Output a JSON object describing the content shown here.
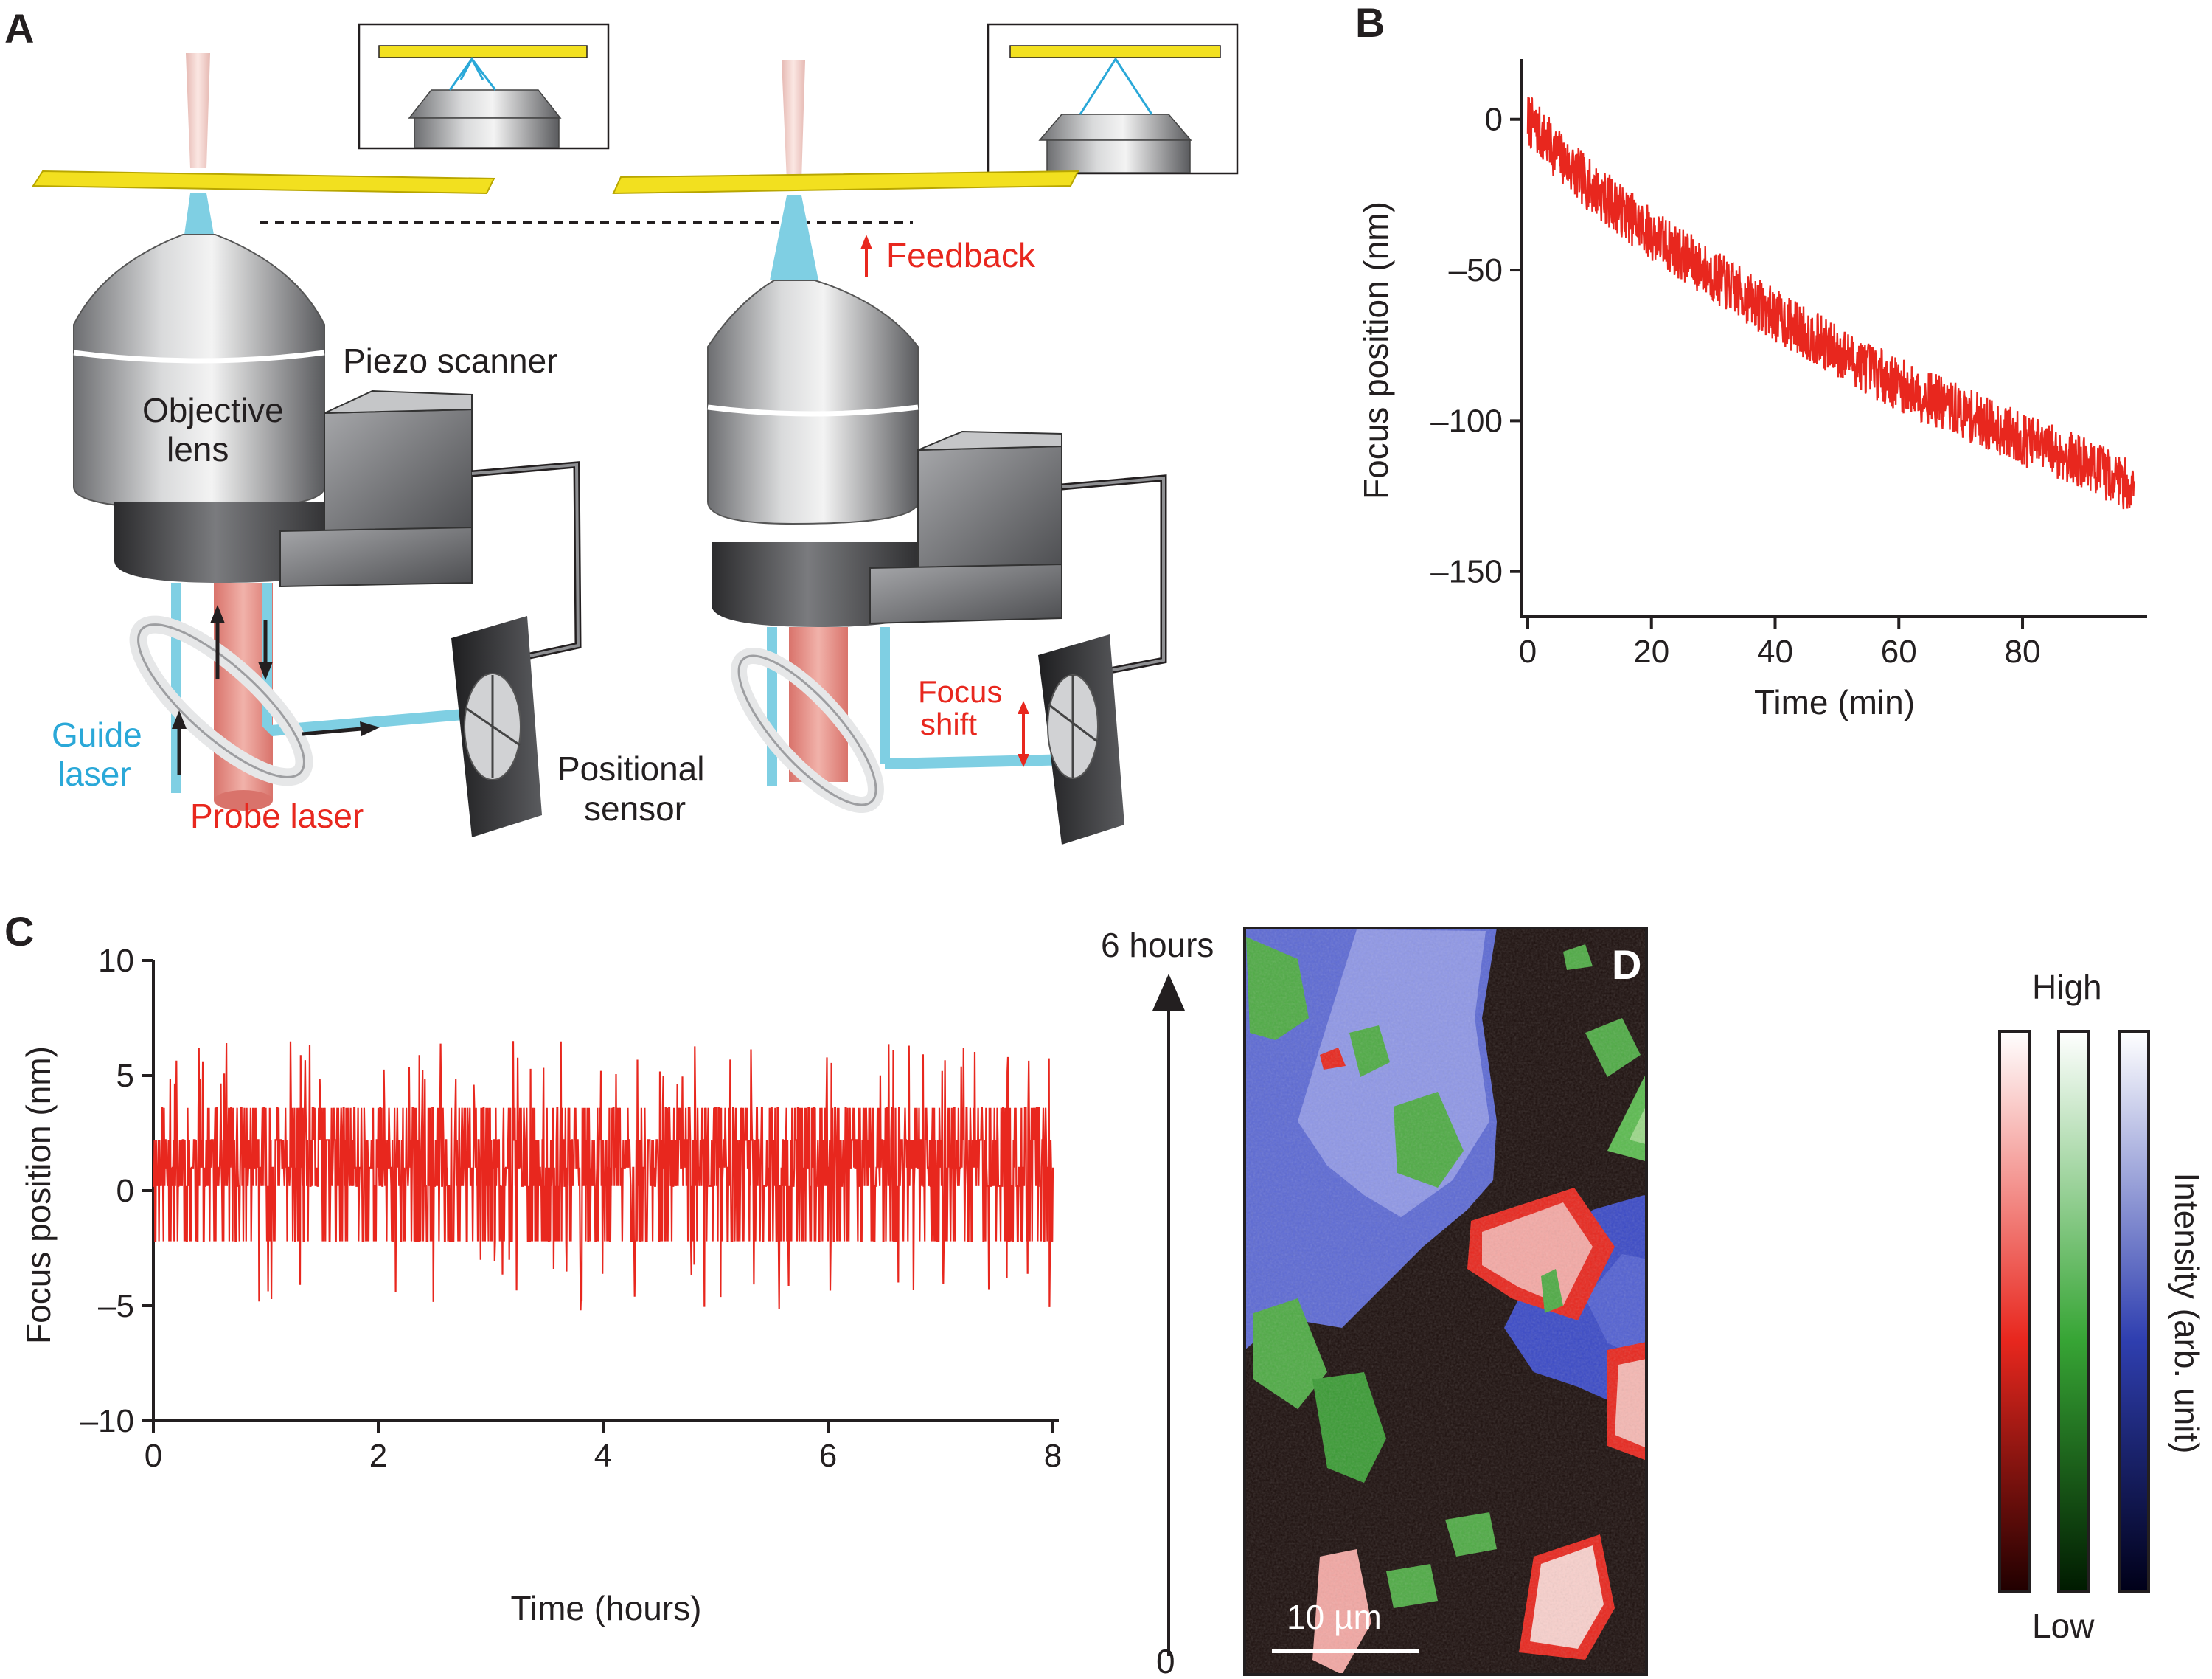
{
  "panels": {
    "A": {
      "letter": "A",
      "labels": {
        "feedback": "Feedback",
        "piezo_scanner": "Piezo scanner",
        "objective_line1": "Objective",
        "objective_line2": "lens",
        "guide_line1": "Guide",
        "guide_line2": "laser",
        "probe_laser": "Probe laser",
        "positional_line1": "Positional",
        "positional_line2": "sensor",
        "focus_line1": "Focus",
        "focus_line2": "shift"
      },
      "colors": {
        "red_label": "#e8271e",
        "cyan_label": "#2aa8d8",
        "coverslip": "#f2e01f",
        "guide_beam": "#7fcfe3",
        "probe_beam": "#e8938b"
      }
    },
    "B": {
      "letter": "B"
    },
    "C": {
      "letter": "C"
    },
    "D": {
      "letter": "D",
      "time_top": "6 hours",
      "time_bottom": "0",
      "scale_bar": "10 µm",
      "colorbar_high": "High",
      "colorbar_low": "Low",
      "colorbar_label": "Intensity (arb. unit)",
      "colorbar_colors": [
        "red",
        "green",
        "blue"
      ]
    }
  },
  "chart_data": [
    {
      "id": "B",
      "type": "line",
      "xlabel": "Time (min)",
      "ylabel": "Focus position (nm)",
      "xlim": [
        0,
        98
      ],
      "ylim": [
        -165,
        20
      ],
      "xticks": [
        0,
        20,
        40,
        60,
        80
      ],
      "yticks": [
        0,
        -50,
        -100,
        -150
      ],
      "ytick_labels": [
        "0",
        "–50",
        "–100",
        "–150"
      ],
      "color": "#e8271e",
      "trend_x": [
        0,
        5,
        10,
        20,
        30,
        40,
        50,
        60,
        70,
        80,
        90,
        98
      ],
      "trend_y": [
        0,
        -12,
        -22,
        -38,
        -52,
        -65,
        -77,
        -88,
        -97,
        -106,
        -114,
        -122
      ],
      "noise_amplitude_nm": 9
    },
    {
      "id": "C",
      "type": "line",
      "xlabel": "Time (hours)",
      "ylabel": "Focus position (nm)",
      "xlim": [
        0,
        8
      ],
      "ylim": [
        -10,
        10
      ],
      "xticks": [
        0,
        2,
        4,
        6,
        8
      ],
      "yticks": [
        10,
        5,
        0,
        -5,
        -10
      ],
      "ytick_labels": [
        "10",
        "5",
        "0",
        "–5",
        "–10"
      ],
      "color": "#e8271e",
      "baseline_nm": 1,
      "band_nm": [
        -2.2,
        3.6
      ],
      "spike_max_nm": 6.5,
      "spike_min_nm": -5.2
    }
  ]
}
